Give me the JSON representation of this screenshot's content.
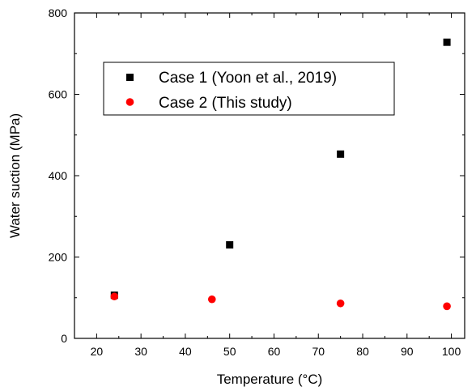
{
  "chart_data": {
    "type": "scatter",
    "title": "",
    "xlabel": "Temperature (°C)",
    "ylabel": "Water suction (MPa)",
    "xlim": [
      15,
      103
    ],
    "ylim": [
      0,
      800
    ],
    "xticks": [
      20,
      30,
      40,
      50,
      60,
      70,
      80,
      90,
      100
    ],
    "yticks": [
      0,
      200,
      400,
      600,
      800
    ],
    "grid": false,
    "legend": "top-left",
    "series": [
      {
        "name": "Case 1 (Yoon et al., 2019)",
        "marker": "square",
        "color": "#000000",
        "points": [
          [
            24,
            106
          ],
          [
            50,
            230
          ],
          [
            75,
            453
          ],
          [
            99,
            728
          ]
        ]
      },
      {
        "name": "Case 2 (This study)",
        "marker": "circle",
        "color": "#ff0000",
        "points": [
          [
            24,
            103
          ],
          [
            46,
            96
          ],
          [
            75,
            86
          ],
          [
            99,
            79
          ]
        ]
      }
    ]
  }
}
